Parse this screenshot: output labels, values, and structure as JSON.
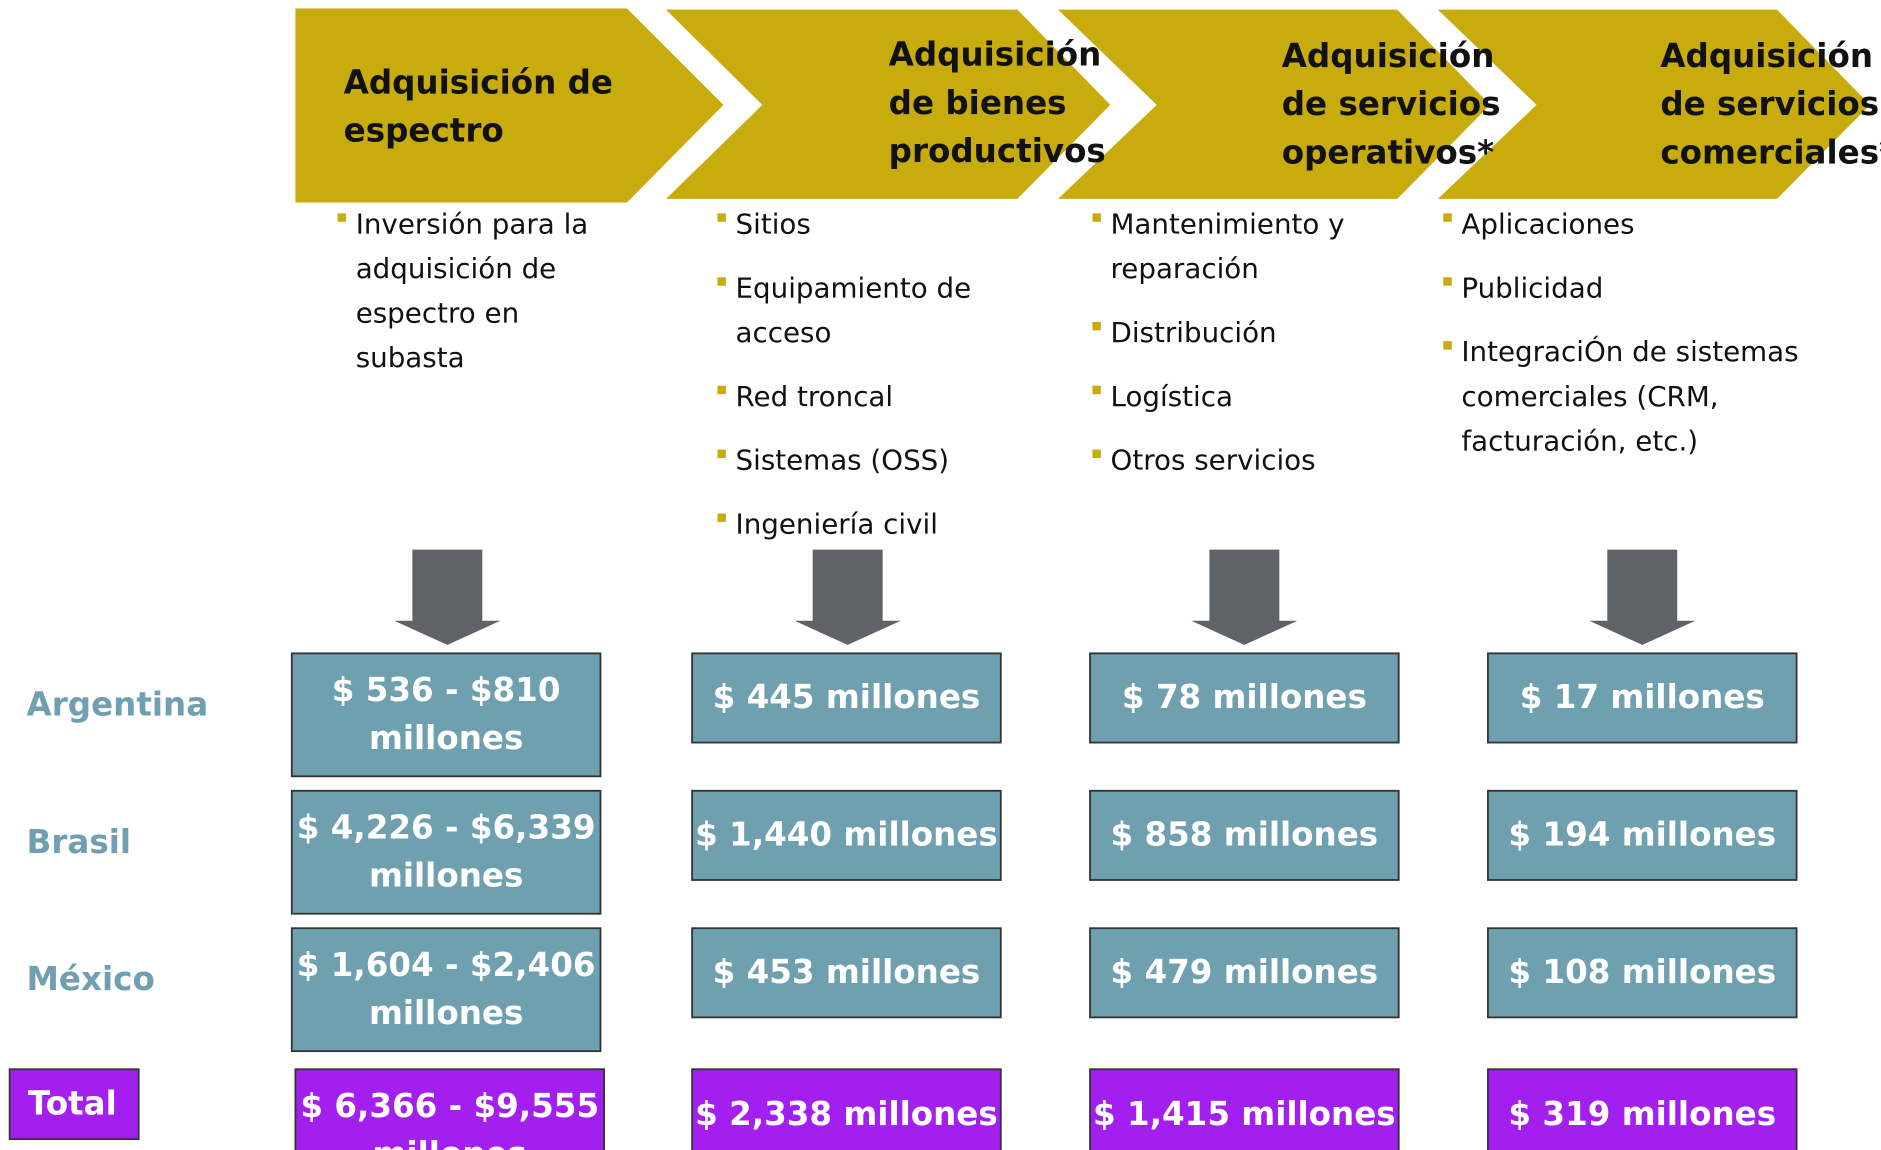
{
  "stages": [
    {
      "title": [
        "Adquisición de",
        "espectro"
      ],
      "bullets": [
        [
          "Inversión para la",
          "adquisición de",
          "espectro en",
          "subasta"
        ]
      ]
    },
    {
      "title": [
        "Adquisición",
        "de bienes",
        "productivos"
      ],
      "bullets": [
        [
          "Sitios"
        ],
        [
          "Equipamiento de",
          "acceso"
        ],
        [
          "Red troncal"
        ],
        [
          "Sistemas (OSS)"
        ],
        [
          "Ingeniería civil"
        ]
      ]
    },
    {
      "title": [
        "Adquisición",
        "de servicios",
        "operativos*"
      ],
      "bullets": [
        [
          "Mantenimiento y",
          "reparación"
        ],
        [
          "Distribución"
        ],
        [
          "Logística"
        ],
        [
          "Otros servicios"
        ]
      ]
    },
    {
      "title": [
        "Adquisición",
        "de servicios",
        "comerciales*"
      ],
      "bullets": [
        [
          "Aplicaciones"
        ],
        [
          "Publicidad"
        ],
        [
          "IntegraciÓn de sistemas",
          "comerciales (CRM,",
          "facturación, etc.)"
        ]
      ]
    }
  ],
  "rows": [
    {
      "label": "Argentina",
      "cells": [
        [
          "$ 536 - $810",
          "millones"
        ],
        [
          "$ 445 millones"
        ],
        [
          "$ 78 millones"
        ],
        [
          "$ 17 millones"
        ]
      ]
    },
    {
      "label": "Brasil",
      "cells": [
        [
          "$ 4,226 - $6,339",
          "millones"
        ],
        [
          "$ 1,440 millones"
        ],
        [
          "$ 858 millones"
        ],
        [
          "$ 194 millones"
        ]
      ]
    },
    {
      "label": "México",
      "cells": [
        [
          "$ 1,604 - $2,406",
          "millones"
        ],
        [
          "$ 453 millones"
        ],
        [
          "$ 479 millones"
        ],
        [
          "$ 108 millones"
        ]
      ]
    },
    {
      "label": "Total",
      "cells": [
        [
          "$ 6,366 - $9,555",
          "millones"
        ],
        [
          "$ 2,338 millones"
        ],
        [
          "$ 1,415 millones"
        ],
        [
          "$ 319 millones"
        ]
      ]
    }
  ]
}
